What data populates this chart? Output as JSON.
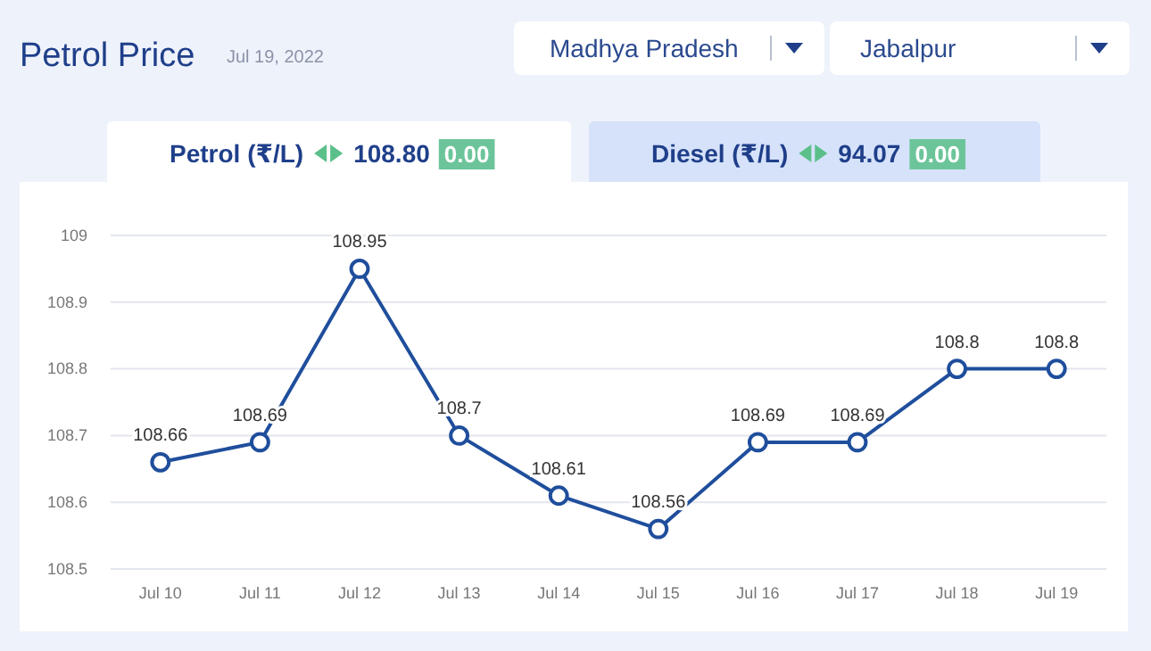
{
  "chart_data": {
    "type": "line",
    "title": "Petrol Price",
    "subtitle": "Jul 19, 2022",
    "annotations": [
      "Madhya Pradesh",
      "Jabalpur",
      "Petrol (₹/L)",
      "108.80",
      "0.00",
      "Diesel (₹/L)",
      "94.07",
      "0.00"
    ],
    "categories": [
      "Jul 10",
      "Jul 11",
      "Jul 12",
      "Jul 13",
      "Jul 14",
      "Jul 15",
      "Jul 16",
      "Jul 17",
      "Jul 18",
      "Jul 19"
    ],
    "series": [
      {
        "color": "#1f4e9c",
        "values": [
          108.66,
          108.69,
          108.95,
          108.7,
          108.61,
          108.56,
          108.69,
          108.69,
          108.8,
          108.8
        ]
      }
    ],
    "ylim": [
      108.5,
      109
    ],
    "yticks": [
      108.5,
      108.6,
      108.7,
      108.8,
      108.9,
      109
    ],
    "grid": "y",
    "marker": "circle",
    "line_style": "solid",
    "data_labels": true
  }
}
